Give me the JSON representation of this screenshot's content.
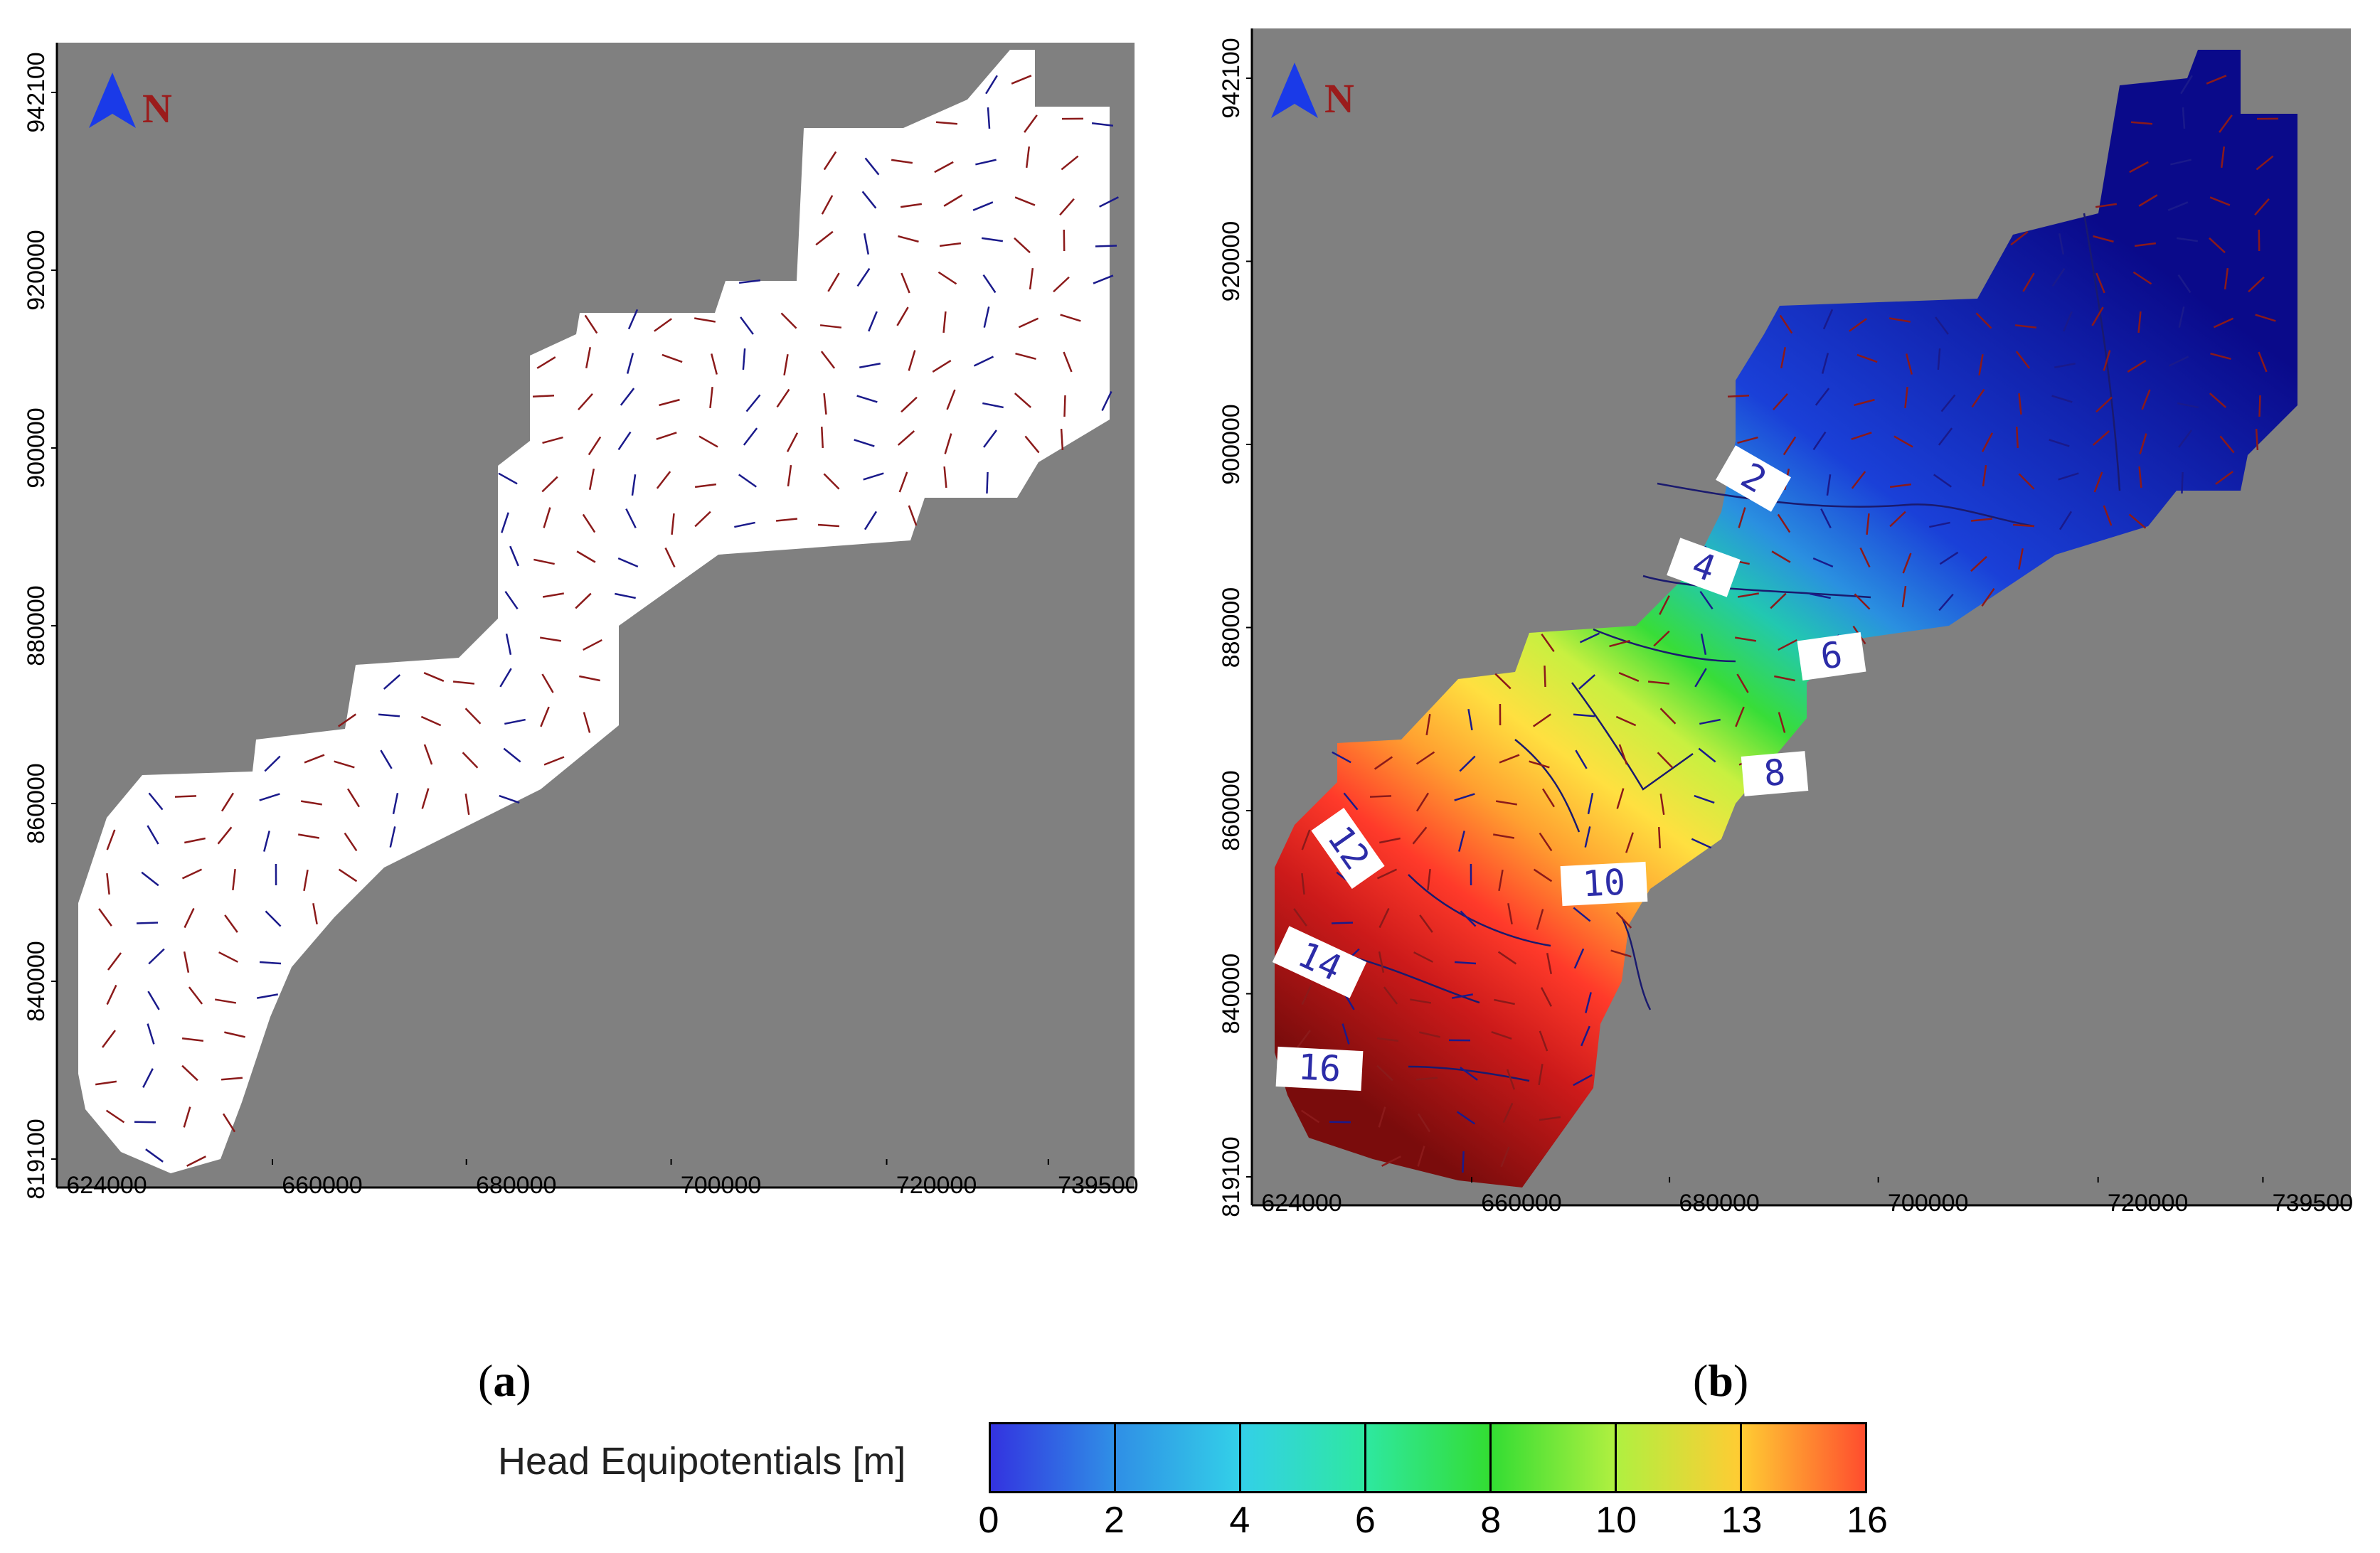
{
  "panels": [
    {
      "id": "a",
      "caption_label": "a",
      "north_label": "N",
      "y_ticks": [
        "942100",
        "920000",
        "900000",
        "880000",
        "860000",
        "840000",
        "819100"
      ],
      "x_ticks": [
        "624000",
        "660000",
        "680000",
        "700000",
        "720000",
        "739500"
      ]
    },
    {
      "id": "b",
      "caption_label": "b",
      "north_label": "N",
      "y_ticks": [
        "942100",
        "920000",
        "900000",
        "880000",
        "860000",
        "840000",
        "819100"
      ],
      "x_ticks": [
        "624000",
        "660000",
        "680000",
        "700000",
        "720000",
        "739500"
      ],
      "contour_labels": [
        "2",
        "4",
        "6",
        "8",
        "10",
        "12",
        "14",
        "16"
      ]
    }
  ],
  "colors": {
    "background_gray": "#808080",
    "domain_white": "#ffffff",
    "arrow_red": "#8b1a1a",
    "arrow_blue": "#1a1a8b",
    "contour_line": "#1a1a6e"
  },
  "legend": {
    "title": "Head Equipotentials [m]",
    "ticks": [
      "0",
      "2",
      "4",
      "6",
      "8",
      "10",
      "13",
      "16"
    ],
    "colors": [
      "#3333e0",
      "#2f8fe6",
      "#33d0e8",
      "#2ee8a0",
      "#33dd33",
      "#b0f040",
      "#ffcc33",
      "#ff4d2e",
      "#cc2a2a"
    ]
  }
}
